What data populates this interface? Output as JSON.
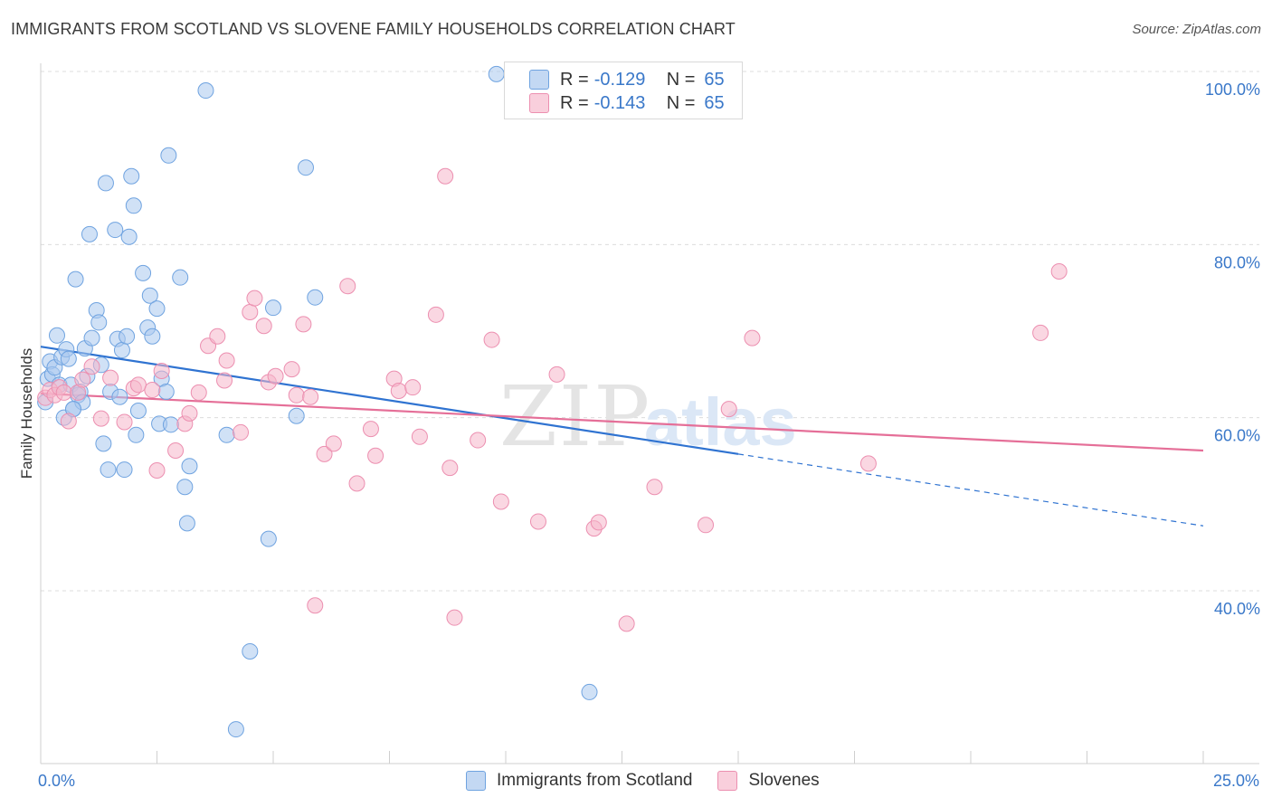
{
  "header": {
    "title": "IMMIGRANTS FROM SCOTLAND VS SLOVENE FAMILY HOUSEHOLDS CORRELATION CHART",
    "source": "Source: ZipAtlas.com"
  },
  "watermark": {
    "zip": "ZIP",
    "atlas": "atlas"
  },
  "legend": {
    "r_label": "R =",
    "n_label": "N =",
    "rows": [
      {
        "r": "-0.129",
        "n": "65",
        "color": "#a9c8ef"
      },
      {
        "r": "-0.143",
        "n": "65",
        "color": "#f6b6cb"
      }
    ]
  },
  "bottom_legend": [
    {
      "label": "Immigrants from Scotland",
      "color": "#a9c8ef"
    },
    {
      "label": "Slovenes",
      "color": "#f6b6cb"
    }
  ],
  "chart_data": {
    "type": "scatter",
    "title": "IMMIGRANTS FROM SCOTLAND VS SLOVENE FAMILY HOUSEHOLDS CORRELATION CHART",
    "xlabel": "",
    "ylabel": "Family Households",
    "xlim": [
      0,
      25
    ],
    "ylim": [
      20,
      102
    ],
    "x_tick_labels": [
      "0.0%",
      "25.0%"
    ],
    "y_ticks": [
      40,
      60,
      80,
      100
    ],
    "y_tick_labels": [
      "40.0%",
      "60.0%",
      "80.0%",
      "100.0%"
    ],
    "grid": true,
    "series": [
      {
        "name": "Immigrants from Scotland",
        "color": "#6fa3e0",
        "fill": "#a9c8ef",
        "line_color": "#2f73d1",
        "trend": {
          "x0": 0,
          "y0": 68.2,
          "x1": 15,
          "y1": 55.8,
          "dash_to_x": 25,
          "dash_to_y": 47.5
        },
        "points": [
          [
            0.1,
            61.8
          ],
          [
            0.15,
            64.5
          ],
          [
            0.2,
            66.5
          ],
          [
            0.25,
            65.0
          ],
          [
            0.3,
            65.8
          ],
          [
            0.35,
            69.5
          ],
          [
            0.4,
            63.8
          ],
          [
            0.45,
            67.0
          ],
          [
            0.5,
            60.0
          ],
          [
            0.55,
            67.9
          ],
          [
            0.6,
            66.8
          ],
          [
            0.65,
            63.8
          ],
          [
            0.7,
            61.0
          ],
          [
            0.75,
            76.0
          ],
          [
            0.8,
            62.6
          ],
          [
            0.85,
            63.0
          ],
          [
            0.9,
            61.8
          ],
          [
            0.95,
            68.0
          ],
          [
            1.0,
            64.8
          ],
          [
            1.05,
            81.2
          ],
          [
            1.1,
            69.2
          ],
          [
            1.2,
            72.4
          ],
          [
            1.25,
            71.0
          ],
          [
            1.3,
            66.1
          ],
          [
            1.35,
            57.0
          ],
          [
            1.4,
            87.1
          ],
          [
            1.45,
            54.0
          ],
          [
            1.5,
            63.0
          ],
          [
            1.6,
            81.7
          ],
          [
            1.65,
            69.1
          ],
          [
            1.7,
            62.4
          ],
          [
            1.75,
            67.8
          ],
          [
            1.8,
            54.0
          ],
          [
            1.85,
            69.4
          ],
          [
            1.9,
            80.9
          ],
          [
            1.95,
            87.9
          ],
          [
            2.0,
            84.5
          ],
          [
            2.05,
            58.0
          ],
          [
            2.1,
            60.8
          ],
          [
            2.2,
            76.7
          ],
          [
            2.3,
            70.4
          ],
          [
            2.35,
            74.1
          ],
          [
            2.4,
            69.4
          ],
          [
            2.5,
            72.6
          ],
          [
            2.55,
            59.3
          ],
          [
            2.6,
            64.5
          ],
          [
            2.7,
            63.0
          ],
          [
            2.75,
            90.3
          ],
          [
            2.8,
            59.2
          ],
          [
            3.0,
            76.2
          ],
          [
            3.1,
            52.0
          ],
          [
            3.15,
            47.8
          ],
          [
            3.2,
            54.4
          ],
          [
            3.55,
            97.8
          ],
          [
            4.0,
            58.0
          ],
          [
            4.5,
            33.0
          ],
          [
            4.9,
            46.0
          ],
          [
            5.0,
            72.7
          ],
          [
            5.5,
            60.2
          ],
          [
            5.7,
            88.9
          ],
          [
            5.9,
            73.9
          ],
          [
            9.8,
            99.7
          ],
          [
            11.8,
            28.3
          ],
          [
            4.2,
            24.0
          ],
          [
            0.7,
            61.0
          ]
        ]
      },
      {
        "name": "Slovenes",
        "color": "#ec8fb0",
        "fill": "#f6b6cb",
        "line_color": "#e56f98",
        "trend": {
          "x0": 0,
          "y0": 62.8,
          "x1": 25,
          "y1": 56.2
        },
        "points": [
          [
            0.1,
            62.3
          ],
          [
            0.2,
            63.2
          ],
          [
            0.3,
            62.6
          ],
          [
            0.4,
            63.5
          ],
          [
            0.5,
            62.9
          ],
          [
            0.6,
            59.6
          ],
          [
            0.8,
            62.9
          ],
          [
            0.9,
            64.4
          ],
          [
            1.1,
            65.9
          ],
          [
            1.3,
            59.9
          ],
          [
            1.5,
            64.6
          ],
          [
            1.8,
            59.5
          ],
          [
            2.0,
            63.4
          ],
          [
            2.1,
            63.8
          ],
          [
            2.4,
            63.2
          ],
          [
            2.5,
            53.9
          ],
          [
            2.6,
            65.4
          ],
          [
            2.9,
            56.2
          ],
          [
            3.1,
            59.3
          ],
          [
            3.2,
            60.5
          ],
          [
            3.4,
            62.9
          ],
          [
            3.6,
            68.3
          ],
          [
            3.8,
            69.4
          ],
          [
            3.95,
            64.3
          ],
          [
            4.0,
            66.6
          ],
          [
            4.3,
            58.3
          ],
          [
            4.5,
            72.2
          ],
          [
            4.6,
            73.8
          ],
          [
            4.8,
            70.6
          ],
          [
            4.9,
            64.1
          ],
          [
            5.05,
            64.8
          ],
          [
            5.4,
            65.6
          ],
          [
            5.5,
            62.6
          ],
          [
            5.65,
            70.8
          ],
          [
            5.8,
            62.4
          ],
          [
            6.1,
            55.8
          ],
          [
            6.3,
            57.0
          ],
          [
            6.6,
            75.2
          ],
          [
            6.8,
            52.4
          ],
          [
            7.1,
            58.7
          ],
          [
            7.2,
            55.6
          ],
          [
            7.6,
            64.5
          ],
          [
            7.7,
            63.1
          ],
          [
            8.0,
            63.5
          ],
          [
            8.15,
            57.8
          ],
          [
            8.5,
            71.9
          ],
          [
            8.8,
            54.2
          ],
          [
            8.9,
            36.9
          ],
          [
            9.4,
            57.4
          ],
          [
            9.7,
            69.0
          ],
          [
            9.9,
            50.3
          ],
          [
            10.7,
            48.0
          ],
          [
            11.1,
            65.0
          ],
          [
            11.9,
            47.2
          ],
          [
            12.0,
            47.9
          ],
          [
            12.6,
            36.2
          ],
          [
            13.2,
            52.0
          ],
          [
            14.3,
            47.6
          ],
          [
            14.8,
            61.0
          ],
          [
            15.3,
            69.2
          ],
          [
            17.8,
            54.7
          ],
          [
            21.5,
            69.8
          ],
          [
            21.9,
            76.9
          ],
          [
            8.7,
            87.9
          ],
          [
            5.9,
            38.3
          ]
        ]
      }
    ]
  }
}
